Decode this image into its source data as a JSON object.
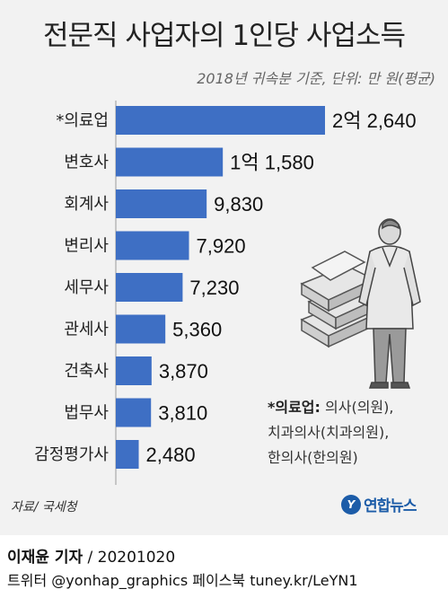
{
  "chart_data": {
    "type": "bar",
    "orientation": "horizontal",
    "title": "전문직 사업자의 1인당 사업소득",
    "subtitle": "2018년 귀속분 기준, 단위: 만 원(평균)",
    "categories": [
      "*의료업",
      "변호사",
      "회계사",
      "변리사",
      "세무사",
      "관세사",
      "건축사",
      "법무사",
      "감정평가사"
    ],
    "values": [
      22640,
      11580,
      9830,
      7920,
      7230,
      5360,
      3870,
      3810,
      2480
    ],
    "value_labels": [
      "2억 2,640",
      "1억 1,580",
      "9,830",
      "7,920",
      "7,230",
      "5,360",
      "3,870",
      "3,810",
      "2,480"
    ],
    "xlim": [
      0,
      22640
    ],
    "grid": false,
    "legend": "none",
    "bar_color": "#3e6fc4"
  },
  "note": {
    "heading": "*의료업:",
    "line1_rest": "의사(의원),",
    "line2": "치과의사(치과의원),",
    "line3": "한의사(한의원)"
  },
  "source": "자료/ 국세청",
  "logo": {
    "mark": "Y",
    "text": "연합뉴스"
  },
  "credit": {
    "author": "이재윤 기자",
    "date": " / 20201020",
    "social": "트위터 @yonhap_graphics  페이스북 tuney.kr/LeYN1"
  },
  "icons": [
    "doctor-with-money-illustration"
  ]
}
